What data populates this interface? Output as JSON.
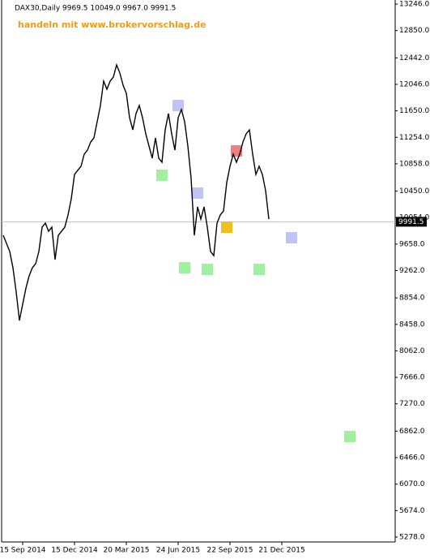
{
  "chart_data": {
    "type": "line",
    "title": "DAX30,Daily  9969.5 10049.0 9967.0 9991.5",
    "subtitle": "handeln mit www.brokervorschlag.de",
    "categories": [
      null,
      null,
      null,
      null,
      null,
      null,
      "15 Sep 2014",
      null,
      null,
      null,
      null,
      null,
      null,
      null,
      null,
      null,
      null,
      null,
      null,
      null,
      null,
      null,
      "15 Dec 2014",
      null,
      null,
      null,
      null,
      null,
      null,
      null,
      null,
      null,
      null,
      null,
      null,
      null,
      null,
      null,
      "20 Mar 2015",
      null,
      null,
      null,
      null,
      null,
      null,
      null,
      null,
      null,
      null,
      null,
      null,
      null,
      null,
      null,
      "24 Jun 2015",
      null,
      null,
      null,
      null,
      null,
      null,
      null,
      null,
      null,
      null,
      null,
      null,
      null,
      null,
      null,
      "22 Sep 2015",
      null,
      null,
      null,
      null,
      null,
      null,
      null,
      null,
      null,
      null,
      null,
      null,
      null,
      null,
      null,
      "21 Dec 2015",
      null,
      null,
      null,
      null,
      null,
      null,
      null,
      null,
      null,
      null,
      null,
      null,
      null,
      null,
      null,
      null,
      null,
      null,
      null,
      null,
      null,
      null,
      null,
      null,
      null,
      null,
      null,
      null,
      null,
      null,
      null,
      null,
      null,
      null,
      null
    ],
    "series": [
      {
        "name": "DAX30",
        "color": "#000000",
        "values": [
          9789,
          9668,
          9547,
          9304,
          8940,
          8516,
          8758,
          8999,
          9183,
          9304,
          9364,
          9547,
          9911,
          9971,
          9850,
          9911,
          9426,
          9789,
          9850,
          9911,
          10093,
          10335,
          10699,
          10760,
          10820,
          11002,
          11063,
          11184,
          11246,
          11488,
          11730,
          12094,
          11973,
          12094,
          12155,
          12337,
          12215,
          12033,
          11912,
          11548,
          11366,
          11609,
          11730,
          11548,
          11306,
          11123,
          10942,
          11246,
          10942,
          10881,
          11366,
          11609,
          11306,
          11063,
          11548,
          11669,
          11488,
          11123,
          10638,
          9789,
          10214,
          10032,
          10214,
          9911,
          9547,
          9486,
          9971,
          10093,
          10153,
          10578,
          10820,
          11002,
          10881,
          11002,
          11184,
          11306,
          11366,
          11002,
          10699,
          10820,
          10699,
          10456,
          10032,
          null,
          null,
          null,
          null,
          null,
          null,
          null,
          null,
          null,
          null,
          null,
          null,
          null,
          null,
          null,
          null,
          null,
          null,
          null,
          null,
          null,
          null,
          null,
          null,
          null,
          null,
          null,
          null,
          null,
          null,
          null,
          null,
          null,
          null,
          null,
          null,
          null,
          null,
          null
        ]
      }
    ],
    "current": {
      "value": 9991.5,
      "label": "9991.5",
      "color": "#c0c0c0"
    },
    "markers": [
      {
        "x": 54,
        "y": 11730,
        "color": "#c0c4f4"
      },
      {
        "x": 49,
        "y": 10687,
        "color": "#a0f0a0"
      },
      {
        "x": 60,
        "y": 10420,
        "color": "#c0c4f4"
      },
      {
        "x": 56,
        "y": 9304,
        "color": "#a0f0a0"
      },
      {
        "x": 72,
        "y": 11051,
        "color": "#f08080"
      },
      {
        "x": 69,
        "y": 9911,
        "color": "#f0c020"
      },
      {
        "x": 63,
        "y": 9280,
        "color": "#a0f0a0"
      },
      {
        "x": 79,
        "y": 9280,
        "color": "#a0f0a0"
      },
      {
        "x": 89,
        "y": 9753,
        "color": "#c0c4f4"
      },
      {
        "x": 107,
        "y": 6781,
        "color": "#a0f0a0"
      }
    ],
    "ylim": [
      5205,
      13307
    ],
    "yticks": [
      {
        "value": 13246,
        "label": "13246.0"
      },
      {
        "value": 12850,
        "label": "12850.0"
      },
      {
        "value": 12442,
        "label": "12442.0"
      },
      {
        "value": 12046,
        "label": "12046.0"
      },
      {
        "value": 11650,
        "label": "11650.0"
      },
      {
        "value": 11254,
        "label": "11254.0"
      },
      {
        "value": 10858,
        "label": "10858.0"
      },
      {
        "value": 10450,
        "label": "10450.0"
      },
      {
        "value": 10054,
        "label": "10054.0"
      },
      {
        "value": 9658,
        "label": "9658.0"
      },
      {
        "value": 9262,
        "label": "9262.0"
      },
      {
        "value": 8854,
        "label": "8854.0"
      },
      {
        "value": 8458,
        "label": "8458.0"
      },
      {
        "value": 8062,
        "label": "8062.0"
      },
      {
        "value": 7666,
        "label": "7666.0"
      },
      {
        "value": 7270,
        "label": "7270.0"
      },
      {
        "value": 6862,
        "label": "6862.0"
      },
      {
        "value": 6466,
        "label": "6466.0"
      },
      {
        "value": 6070,
        "label": "6070.0"
      },
      {
        "value": 5674,
        "label": "5674.0"
      },
      {
        "value": 5278,
        "label": "5278.0"
      }
    ],
    "grid": false
  }
}
